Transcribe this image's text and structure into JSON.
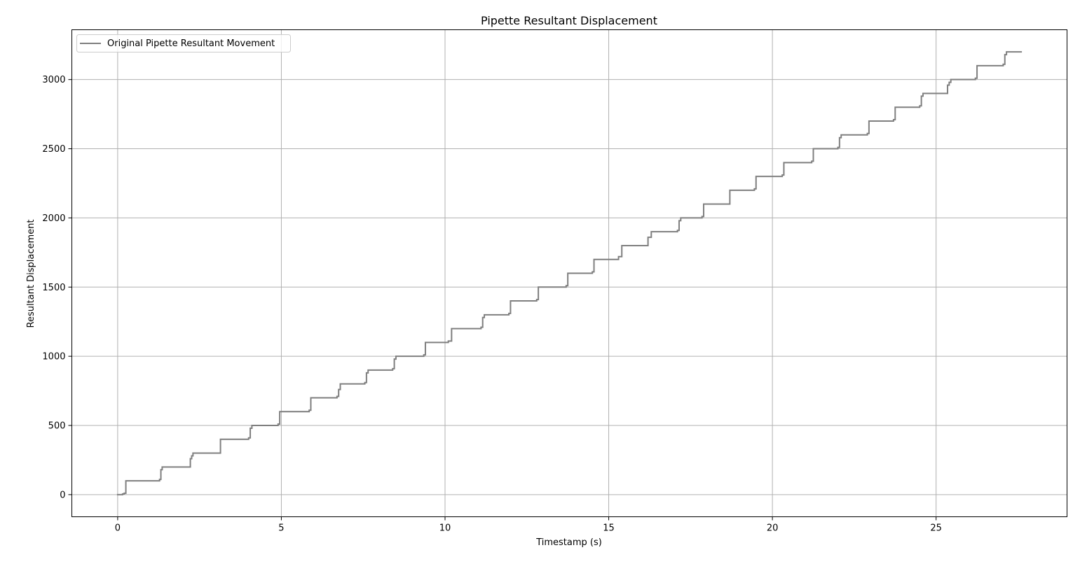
{
  "chart_data": {
    "type": "line",
    "title": "Pipette Resultant Displacement",
    "xlabel": "Timestamp (s)",
    "ylabel": "Resultant Displacement",
    "xlim": [
      -1.4,
      29.0
    ],
    "ylim": [
      -160,
      3360
    ],
    "xticks": [
      0,
      5,
      10,
      15,
      20,
      25
    ],
    "yticks": [
      0,
      500,
      1000,
      1500,
      2000,
      2500,
      3000
    ],
    "grid": true,
    "legend": {
      "position": "top-left",
      "entries": [
        "Original Pipette Resultant Movement"
      ]
    },
    "series": [
      {
        "name": "Original Pipette Resultant Movement",
        "color": "#7f7f7f",
        "x": [
          0.0,
          0.15,
          0.15,
          0.2,
          0.2,
          0.25,
          0.25,
          1.28,
          1.28,
          1.32,
          1.32,
          1.36,
          1.36,
          2.22,
          2.22,
          2.26,
          2.26,
          2.3,
          2.3,
          3.14,
          3.14,
          4.0,
          4.0,
          4.05,
          4.05,
          4.1,
          4.1,
          4.9,
          4.9,
          4.95,
          4.95,
          5.85,
          5.85,
          5.9,
          5.9,
          6.7,
          6.7,
          6.75,
          6.75,
          6.8,
          6.8,
          7.55,
          7.55,
          7.6,
          7.6,
          7.65,
          7.65,
          8.4,
          8.4,
          8.45,
          8.45,
          8.5,
          8.5,
          9.35,
          9.35,
          9.4,
          9.4,
          10.1,
          10.1,
          10.2,
          10.2,
          11.1,
          11.1,
          11.15,
          11.15,
          11.2,
          11.2,
          11.95,
          11.95,
          12.0,
          12.0,
          12.8,
          12.8,
          12.85,
          12.85,
          13.7,
          13.7,
          13.75,
          13.75,
          14.5,
          14.5,
          14.55,
          14.55,
          15.3,
          15.3,
          15.4,
          15.4,
          16.2,
          16.2,
          16.3,
          16.3,
          17.1,
          17.1,
          17.15,
          17.15,
          17.2,
          17.2,
          17.85,
          17.85,
          17.9,
          17.9,
          18.7,
          18.7,
          19.45,
          19.45,
          19.5,
          19.5,
          20.3,
          20.3,
          20.35,
          20.35,
          21.2,
          21.2,
          21.25,
          21.25,
          22.0,
          22.0,
          22.05,
          22.05,
          22.1,
          22.1,
          22.9,
          22.9,
          22.95,
          22.95,
          23.7,
          23.7,
          23.75,
          23.75,
          24.5,
          24.5,
          24.55,
          24.55,
          24.6,
          24.6,
          25.35,
          25.35,
          25.4,
          25.4,
          25.45,
          25.45,
          26.2,
          26.2,
          26.25,
          26.25,
          27.05,
          27.05,
          27.1,
          27.1,
          27.15,
          27.15,
          27.6
        ],
        "y": [
          0,
          0,
          5,
          5,
          10,
          10,
          100,
          100,
          110,
          110,
          180,
          180,
          200,
          200,
          260,
          260,
          280,
          280,
          300,
          300,
          400,
          400,
          410,
          410,
          480,
          480,
          500,
          500,
          510,
          510,
          600,
          600,
          610,
          610,
          700,
          700,
          710,
          710,
          760,
          760,
          800,
          800,
          810,
          810,
          880,
          880,
          900,
          900,
          910,
          910,
          980,
          980,
          1000,
          1000,
          1010,
          1010,
          1100,
          1100,
          1110,
          1110,
          1200,
          1200,
          1210,
          1210,
          1280,
          1280,
          1300,
          1300,
          1310,
          1310,
          1400,
          1400,
          1410,
          1410,
          1500,
          1500,
          1510,
          1510,
          1600,
          1600,
          1610,
          1610,
          1700,
          1700,
          1720,
          1720,
          1800,
          1800,
          1860,
          1860,
          1900,
          1900,
          1910,
          1910,
          1980,
          1980,
          2000,
          2000,
          2010,
          2010,
          2100,
          2100,
          2200,
          2200,
          2210,
          2210,
          2300,
          2300,
          2310,
          2310,
          2400,
          2400,
          2410,
          2410,
          2500,
          2500,
          2510,
          2510,
          2580,
          2580,
          2600,
          2600,
          2610,
          2610,
          2700,
          2700,
          2710,
          2710,
          2800,
          2800,
          2810,
          2810,
          2880,
          2880,
          2900,
          2900,
          2960,
          2960,
          2980,
          2980,
          3000,
          3000,
          3010,
          3010,
          3100,
          3100,
          3110,
          3110,
          3180,
          3180,
          3200,
          3200
        ]
      }
    ]
  }
}
